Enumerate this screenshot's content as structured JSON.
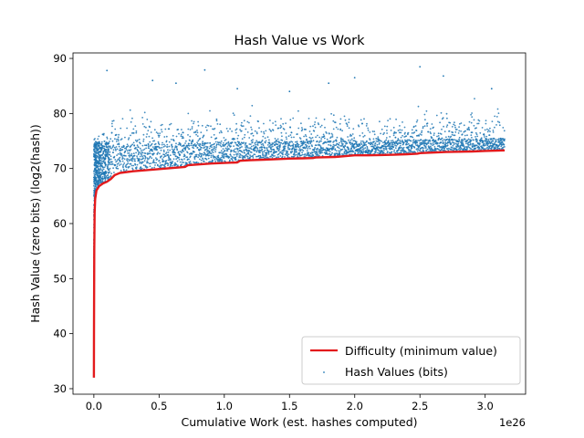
{
  "chart_data": {
    "type": "scatter",
    "title": "Hash Value vs Work",
    "xlabel": "Cumulative Work (est. hashes computed)",
    "ylabel": "Hash Value (zero bits) (log2(hash))",
    "x_multiplier_label": "1e26",
    "xlim": [
      -0.16,
      3.31
    ],
    "ylim": [
      29,
      91
    ],
    "x_ticks": [
      0.0,
      0.5,
      1.0,
      1.5,
      2.0,
      2.5,
      3.0
    ],
    "x_tick_labels": [
      "0.0",
      "0.5",
      "1.0",
      "1.5",
      "2.0",
      "2.5",
      "3.0"
    ],
    "y_ticks": [
      30,
      40,
      50,
      60,
      70,
      80,
      90
    ],
    "y_tick_labels": [
      "30",
      "40",
      "50",
      "60",
      "70",
      "80",
      "90"
    ],
    "grid": false,
    "legend_position": "lower-right",
    "series": [
      {
        "name": "Difficulty (minimum value)",
        "kind": "line",
        "color": "#e31a1c",
        "x": [
          0.0,
          0.001,
          0.003,
          0.006,
          0.01,
          0.02,
          0.04,
          0.07,
          0.1,
          0.13,
          0.16,
          0.2,
          0.3,
          0.5,
          0.7,
          0.72,
          0.9,
          1.0,
          1.1,
          1.12,
          1.2,
          1.3,
          1.4,
          1.5,
          1.6,
          1.68,
          1.7,
          1.85,
          1.9,
          1.95,
          2.0,
          2.1,
          2.2,
          2.3,
          2.4,
          2.48,
          2.5,
          2.6,
          2.7,
          2.8,
          2.9,
          3.0,
          3.15
        ],
        "y": [
          32,
          40,
          55,
          62,
          64.5,
          66,
          66.8,
          67.3,
          67.6,
          68.1,
          68.8,
          69.2,
          69.5,
          69.9,
          70.3,
          70.6,
          70.9,
          71.0,
          71.1,
          71.4,
          71.5,
          71.6,
          71.7,
          71.8,
          71.85,
          71.9,
          72.0,
          72.1,
          72.2,
          72.3,
          72.4,
          72.4,
          72.45,
          72.5,
          72.6,
          72.7,
          72.8,
          72.9,
          73.0,
          73.05,
          73.1,
          73.2,
          73.3
        ]
      },
      {
        "name": "Hash Values (bits)",
        "kind": "scatter",
        "color": "#1f77b4",
        "x_range": [
          0.0,
          3.15
        ],
        "typical_band": [
          68,
          76
        ],
        "outliers": {
          "x": [
            0.1,
            0.45,
            0.63,
            0.85,
            1.1,
            1.5,
            1.8,
            2.0,
            2.5,
            2.68,
            3.05
          ],
          "y": [
            87.8,
            86.0,
            85.5,
            87.9,
            84.5,
            84.0,
            85.5,
            86.5,
            88.5,
            86.8,
            84.5
          ]
        }
      }
    ]
  }
}
